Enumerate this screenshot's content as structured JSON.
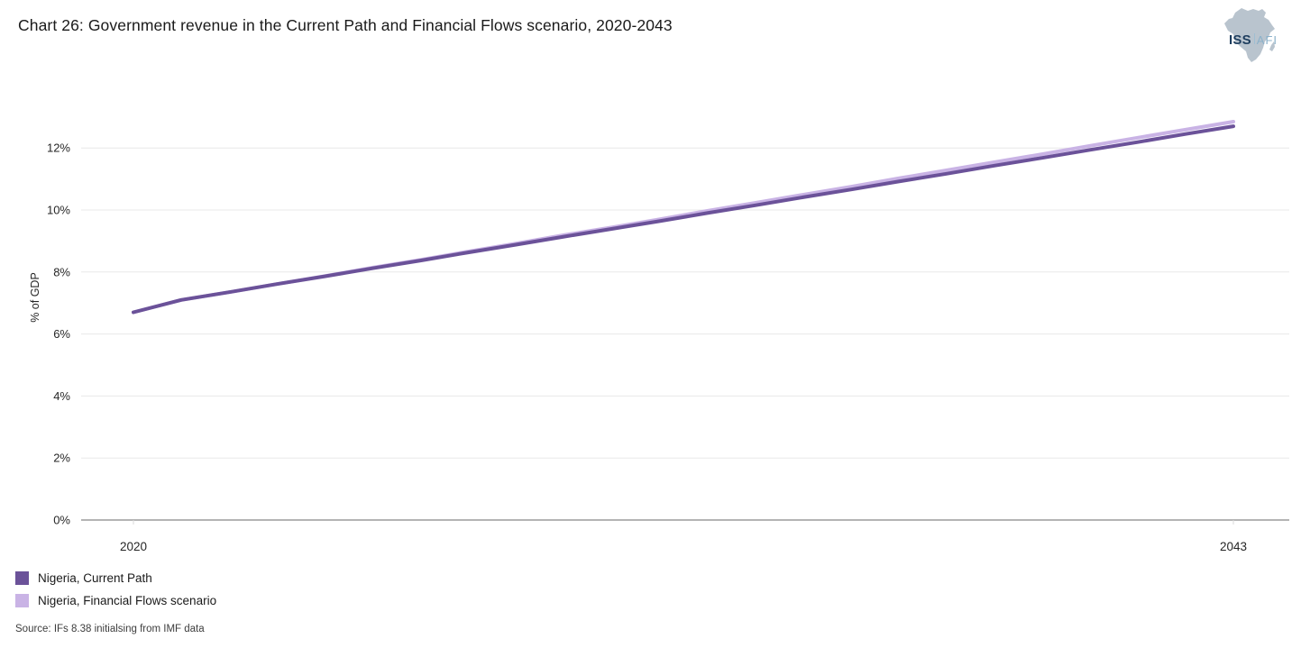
{
  "header": {
    "title": "Chart 26: Government revenue in the Current Path and Financial Flows scenario, 2020-2043",
    "logo": {
      "primary": "ISS",
      "secondary": "AFI"
    }
  },
  "chart_data": {
    "type": "line",
    "title": "Chart 26: Government revenue in the Current Path and Financial Flows scenario, 2020-2043",
    "xlabel": "",
    "ylabel": "% of GDP",
    "x": [
      2020,
      2021,
      2022,
      2023,
      2024,
      2025,
      2026,
      2027,
      2028,
      2029,
      2030,
      2031,
      2032,
      2033,
      2034,
      2035,
      2036,
      2037,
      2038,
      2039,
      2040,
      2041,
      2042,
      2043
    ],
    "series": [
      {
        "name": "Nigeria, Current Path",
        "color": "#6b5299",
        "values": [
          6.7,
          7.1,
          7.35,
          7.61,
          7.86,
          8.12,
          8.37,
          8.63,
          8.88,
          9.14,
          9.39,
          9.64,
          9.9,
          10.15,
          10.41,
          10.66,
          10.92,
          11.17,
          11.43,
          11.68,
          11.94,
          12.19,
          12.45,
          12.7
        ]
      },
      {
        "name": "Nigeria, Financial Flows scenario",
        "color": "#c9b3e5",
        "values": [
          6.7,
          7.1,
          7.35,
          7.61,
          7.87,
          8.14,
          8.39,
          8.66,
          8.92,
          9.19,
          9.44,
          9.7,
          9.97,
          10.23,
          10.49,
          10.75,
          11.02,
          11.28,
          11.54,
          11.8,
          12.07,
          12.33,
          12.59,
          12.85
        ]
      }
    ],
    "ylim": [
      0,
      13.4
    ],
    "yticks": [
      0,
      2,
      4,
      6,
      8,
      10,
      12
    ],
    "ytick_suffix": "%",
    "xticks": [
      2020,
      2043
    ],
    "grid": "horizontal",
    "legend_position": "bottom-left",
    "colors": {
      "gridline": "#e8e8e8",
      "axis_line": "#9b9b9b",
      "tick_mark": "#d9d9d9",
      "tick_text": "#262626"
    }
  },
  "legend": {
    "items": [
      {
        "label": "Nigeria, Current Path"
      },
      {
        "label": "Nigeria, Financial Flows scenario"
      }
    ]
  },
  "footer": {
    "source": "Source: IFs 8.38 initialsing from IMF data"
  }
}
